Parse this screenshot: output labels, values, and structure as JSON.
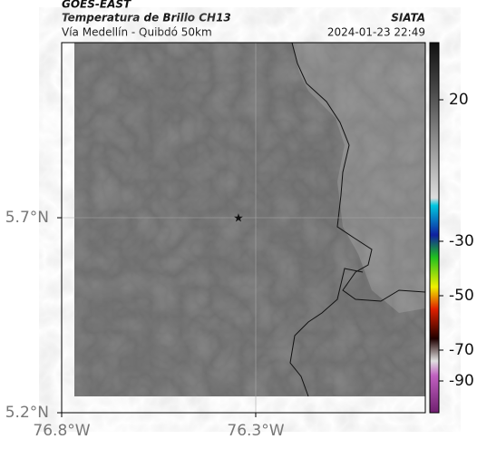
{
  "header": {
    "source": "GOES-EAST",
    "product": "Temperatura de Brillo CH13",
    "agency": "SIATA",
    "region": "Vía Medellín - Quibdó 50km",
    "datetime": "2024-01-23 22:49"
  },
  "map": {
    "xlim": [
      -76.8,
      -75.863
    ],
    "ylim": [
      5.2,
      6.149
    ],
    "xticks": [
      {
        "value": -76.8,
        "label": "76.8°W"
      },
      {
        "value": -76.3,
        "label": "76.3°W"
      }
    ],
    "yticks": [
      {
        "value": 5.7,
        "label": "5.7°N"
      },
      {
        "value": 5.2,
        "label": "5.2°N"
      }
    ]
  },
  "colorbar": {
    "ticks": [
      20,
      -30,
      -50,
      -70,
      -90
    ]
  }
}
